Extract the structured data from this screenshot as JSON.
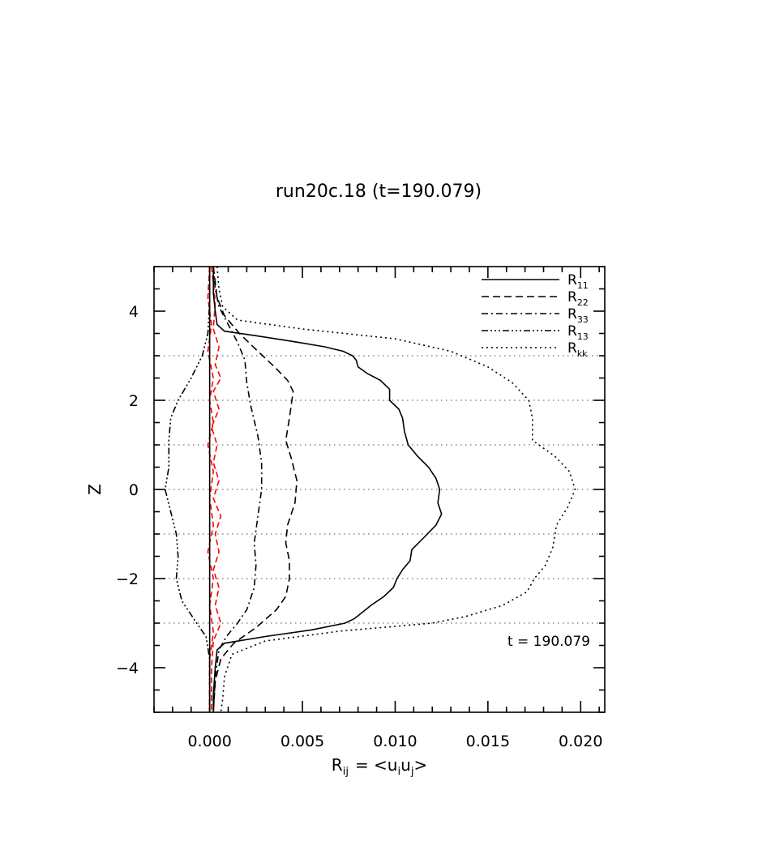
{
  "chart_data": {
    "type": "line",
    "title": "run20c.18 (t=190.079)",
    "xlabel": {
      "base": "R",
      "sub": "ij",
      "eq": "= <u",
      "s1": "i",
      "mid": "u",
      "s2": "j",
      "end": ">"
    },
    "ylabel": "Z",
    "annotation": "t  =  190.079",
    "xlim": [
      -0.003,
      0.0213
    ],
    "ylim": [
      -5,
      5
    ],
    "xticks": [
      0.0,
      0.005,
      0.01,
      0.015,
      0.02
    ],
    "xtick_labels": [
      "0.000",
      "0.005",
      "0.010",
      "0.015",
      "0.020"
    ],
    "yticks": [
      -4,
      -2,
      0,
      2,
      4
    ],
    "ytick_labels": [
      "−4",
      "−2",
      "0",
      "2",
      "4"
    ],
    "hgrid_at": [
      -3,
      -2,
      -1,
      0,
      1,
      2,
      3
    ],
    "legend_position": "top-right",
    "series": [
      {
        "name": "R",
        "sub": "11",
        "color": "#000000",
        "dash": "solid",
        "points": [
          [
            0.0002,
            5
          ],
          [
            0.0002,
            4.4
          ],
          [
            0.0003,
            4
          ],
          [
            0.0004,
            3.7
          ],
          [
            0.0008,
            3.55
          ],
          [
            0.0025,
            3.45
          ],
          [
            0.0045,
            3.32
          ],
          [
            0.0062,
            3.2
          ],
          [
            0.0072,
            3.1
          ],
          [
            0.0077,
            3.0
          ],
          [
            0.0079,
            2.9
          ],
          [
            0.008,
            2.75
          ],
          [
            0.0085,
            2.6
          ],
          [
            0.0092,
            2.45
          ],
          [
            0.0097,
            2.25
          ],
          [
            0.0097,
            2.0
          ],
          [
            0.0102,
            1.8
          ],
          [
            0.0104,
            1.6
          ],
          [
            0.0105,
            1.3
          ],
          [
            0.0107,
            1.0
          ],
          [
            0.0112,
            0.75
          ],
          [
            0.0118,
            0.5
          ],
          [
            0.0122,
            0.25
          ],
          [
            0.0124,
            0.0
          ],
          [
            0.0123,
            -0.3
          ],
          [
            0.0125,
            -0.55
          ],
          [
            0.0122,
            -0.8
          ],
          [
            0.0115,
            -1.1
          ],
          [
            0.0109,
            -1.35
          ],
          [
            0.0108,
            -1.6
          ],
          [
            0.0104,
            -1.8
          ],
          [
            0.0101,
            -2.0
          ],
          [
            0.0099,
            -2.2
          ],
          [
            0.0094,
            -2.4
          ],
          [
            0.0087,
            -2.6
          ],
          [
            0.0081,
            -2.8
          ],
          [
            0.0078,
            -2.9
          ],
          [
            0.0073,
            -3.0
          ],
          [
            0.0055,
            -3.15
          ],
          [
            0.003,
            -3.3
          ],
          [
            0.0008,
            -3.45
          ],
          [
            0.0004,
            -3.6
          ],
          [
            0.0003,
            -4.0
          ],
          [
            0.0002,
            -4.6
          ],
          [
            0.0002,
            -5
          ]
        ]
      },
      {
        "name": "R",
        "sub": "22",
        "color": "#000000",
        "dash": "9,5",
        "points": [
          [
            0.0002,
            5
          ],
          [
            0.0004,
            4.3
          ],
          [
            0.0008,
            3.9
          ],
          [
            0.0016,
            3.5
          ],
          [
            0.0026,
            3.1
          ],
          [
            0.0035,
            2.75
          ],
          [
            0.0042,
            2.45
          ],
          [
            0.0045,
            2.2
          ],
          [
            0.0044,
            1.9
          ],
          [
            0.0043,
            1.6
          ],
          [
            0.0041,
            1.1
          ],
          [
            0.0044,
            0.7
          ],
          [
            0.0047,
            0.2
          ],
          [
            0.0046,
            -0.3
          ],
          [
            0.0042,
            -0.8
          ],
          [
            0.0041,
            -1.2
          ],
          [
            0.0043,
            -1.6
          ],
          [
            0.0043,
            -2.0
          ],
          [
            0.0041,
            -2.4
          ],
          [
            0.0036,
            -2.7
          ],
          [
            0.0025,
            -3.1
          ],
          [
            0.0013,
            -3.45
          ],
          [
            0.0006,
            -3.8
          ],
          [
            0.0003,
            -4.3
          ],
          [
            0.0002,
            -5
          ]
        ]
      },
      {
        "name": "R",
        "sub": "33",
        "color": "#000000",
        "dash": "8,4,2,4",
        "points": [
          [
            0.0002,
            5
          ],
          [
            0.0003,
            4.5
          ],
          [
            0.0005,
            4.1
          ],
          [
            0.001,
            3.7
          ],
          [
            0.0015,
            3.3
          ],
          [
            0.0019,
            2.9
          ],
          [
            0.002,
            2.4
          ],
          [
            0.0022,
            1.9
          ],
          [
            0.0026,
            1.2
          ],
          [
            0.0028,
            0.6
          ],
          [
            0.0028,
            0.0
          ],
          [
            0.0026,
            -0.6
          ],
          [
            0.0024,
            -1.2
          ],
          [
            0.0025,
            -1.7
          ],
          [
            0.0024,
            -2.2
          ],
          [
            0.002,
            -2.7
          ],
          [
            0.0015,
            -3.0
          ],
          [
            0.0009,
            -3.3
          ],
          [
            0.0005,
            -3.6
          ],
          [
            0.0003,
            -4.2
          ],
          [
            0.0002,
            -5
          ]
        ]
      },
      {
        "name": "R",
        "sub": "13",
        "color": "#000000",
        "dash": "8,3,2,3,2,3,2,3",
        "points": [
          [
            0.0,
            5
          ],
          [
            0.0,
            4.2
          ],
          [
            -0.0001,
            3.5
          ],
          [
            -0.0004,
            3.0
          ],
          [
            -0.001,
            2.5
          ],
          [
            -0.0017,
            2.0
          ],
          [
            -0.0021,
            1.6
          ],
          [
            -0.0022,
            1.1
          ],
          [
            -0.0022,
            0.5
          ],
          [
            -0.0024,
            0.0
          ],
          [
            -0.0021,
            -0.5
          ],
          [
            -0.0018,
            -1.0
          ],
          [
            -0.0017,
            -1.5
          ],
          [
            -0.0018,
            -2.0
          ],
          [
            -0.0015,
            -2.5
          ],
          [
            -0.0007,
            -3.0
          ],
          [
            -0.0002,
            -3.3
          ],
          [
            0.0,
            -3.8
          ],
          [
            0.0,
            -5
          ]
        ]
      },
      {
        "name": "R",
        "sub": "kk",
        "color": "#000000",
        "dash": "2,4",
        "points": [
          [
            0.0004,
            5
          ],
          [
            0.0005,
            4.5
          ],
          [
            0.0007,
            4.1
          ],
          [
            0.0015,
            3.8
          ],
          [
            0.005,
            3.6
          ],
          [
            0.01,
            3.38
          ],
          [
            0.013,
            3.1
          ],
          [
            0.015,
            2.75
          ],
          [
            0.0163,
            2.4
          ],
          [
            0.0172,
            2.0
          ],
          [
            0.0174,
            1.6
          ],
          [
            0.0174,
            1.1
          ],
          [
            0.0186,
            0.75
          ],
          [
            0.0194,
            0.4
          ],
          [
            0.0197,
            0.0
          ],
          [
            0.0193,
            -0.4
          ],
          [
            0.0187,
            -0.8
          ],
          [
            0.0185,
            -1.3
          ],
          [
            0.0181,
            -1.7
          ],
          [
            0.0175,
            -2.0
          ],
          [
            0.0171,
            -2.3
          ],
          [
            0.0158,
            -2.6
          ],
          [
            0.0138,
            -2.85
          ],
          [
            0.012,
            -3.0
          ],
          [
            0.007,
            -3.18
          ],
          [
            0.003,
            -3.4
          ],
          [
            0.0012,
            -3.7
          ],
          [
            0.0008,
            -4.2
          ],
          [
            0.0007,
            -4.7
          ],
          [
            0.0006,
            -5
          ]
        ]
      }
    ],
    "extra_series": [
      {
        "color": "#ff0000",
        "dash": "7,4",
        "points": [
          [
            0.0001,
            5
          ],
          [
            0.0003,
            4.2
          ],
          [
            0.0002,
            3.6
          ],
          [
            0.0005,
            3.2
          ],
          [
            0.0003,
            2.8
          ],
          [
            0.0006,
            2.5
          ],
          [
            0.0002,
            2.2
          ],
          [
            0.0005,
            1.8
          ],
          [
            0.0001,
            1.4
          ],
          [
            0.0004,
            1.0
          ],
          [
            0.0002,
            0.6
          ],
          [
            0.0005,
            0.2
          ],
          [
            0.0002,
            -0.2
          ],
          [
            0.0006,
            -0.6
          ],
          [
            0.0003,
            -1.0
          ],
          [
            0.0005,
            -1.4
          ],
          [
            0.0002,
            -1.8
          ],
          [
            0.0005,
            -2.2
          ],
          [
            0.0003,
            -2.6
          ],
          [
            0.0006,
            -3.0
          ],
          [
            0.0002,
            -3.4
          ],
          [
            0.0001,
            -4.0
          ],
          [
            0.0001,
            -5
          ]
        ]
      },
      {
        "color": "#ff0000",
        "dash": "7,4",
        "points": [
          [
            0.0,
            5
          ],
          [
            -0.0001,
            4.3
          ],
          [
            0.0001,
            3.7
          ],
          [
            -0.0001,
            3.1
          ],
          [
            0.0002,
            2.5
          ],
          [
            0.0,
            2.0
          ],
          [
            0.0002,
            1.5
          ],
          [
            -0.0001,
            1.0
          ],
          [
            0.0002,
            0.4
          ],
          [
            0.0,
            -0.2
          ],
          [
            0.0002,
            -0.8
          ],
          [
            -0.0001,
            -1.4
          ],
          [
            0.0002,
            -2.0
          ],
          [
            0.0,
            -2.6
          ],
          [
            0.0002,
            -3.2
          ],
          [
            0.0,
            -3.8
          ],
          [
            0.0,
            -5
          ]
        ]
      }
    ]
  }
}
